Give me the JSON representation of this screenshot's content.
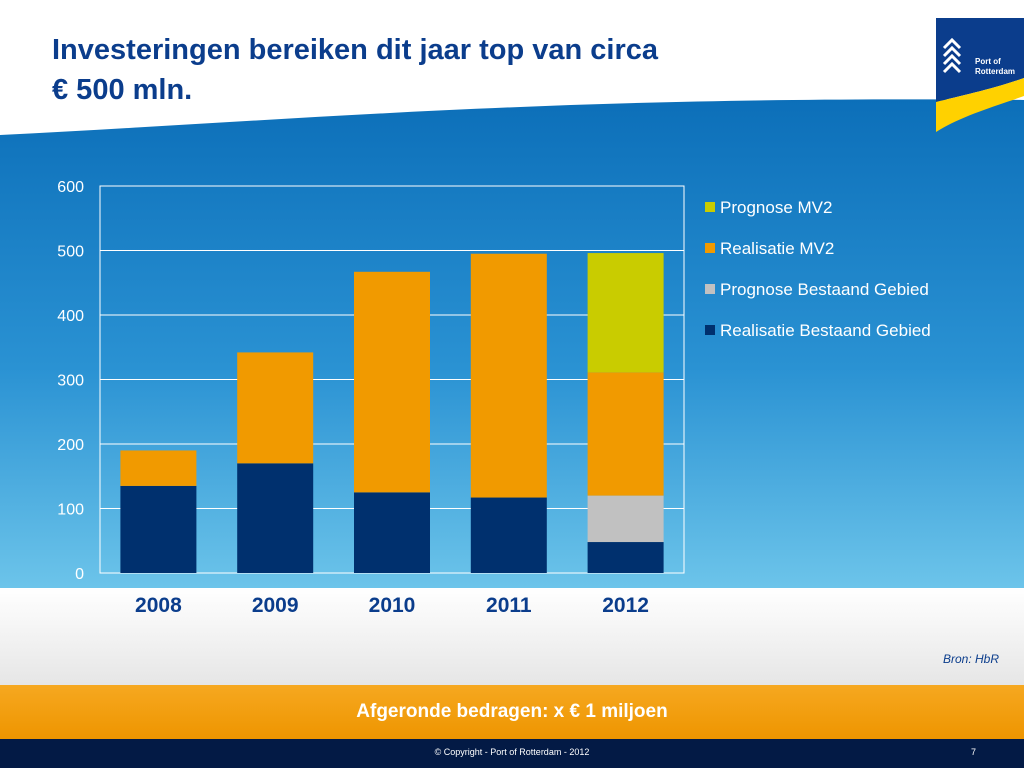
{
  "slide": {
    "title_line1": "Investeringen bereiken dit jaar top van circa",
    "title_line2": "€ 500 mln.",
    "logo_text_line1": "Port of",
    "logo_text_line2": "Rotterdam",
    "source": "Bron: HbR",
    "note": "Afgeronde bedragen: x € 1 miljoen",
    "copyright": "© Copyright - Port of Rotterdam - 2012",
    "page_number": "7"
  },
  "colors": {
    "prognose_mv2": "#c9cc00",
    "realisatie_mv2": "#f19a00",
    "prognose_bestaand": "#c1c1c1",
    "realisatie_bestaand": "#00306e",
    "title": "#0b3d8c",
    "band": "#f19a00",
    "footer": "#031a45"
  },
  "chart_data": {
    "type": "bar",
    "stacked": true,
    "categories": [
      "2008",
      "2009",
      "2010",
      "2011",
      "2012"
    ],
    "series": [
      {
        "name": "Realisatie Bestaand Gebied",
        "values": [
          135,
          170,
          125,
          117,
          48
        ]
      },
      {
        "name": "Prognose Bestaand Gebied",
        "values": [
          0,
          0,
          0,
          0,
          72
        ]
      },
      {
        "name": "Realisatie MV2",
        "values": [
          55,
          172,
          342,
          378,
          191
        ]
      },
      {
        "name": "Prognose MV2",
        "values": [
          0,
          0,
          0,
          0,
          185
        ]
      }
    ],
    "legend_order": [
      "Prognose MV2",
      "Realisatie MV2",
      "Prognose Bestaand Gebied",
      "Realisatie Bestaand Gebied"
    ],
    "yticks": [
      0,
      100,
      200,
      300,
      400,
      500,
      600
    ],
    "ylim": [
      0,
      600
    ],
    "grid": true,
    "legend_position": "right"
  }
}
